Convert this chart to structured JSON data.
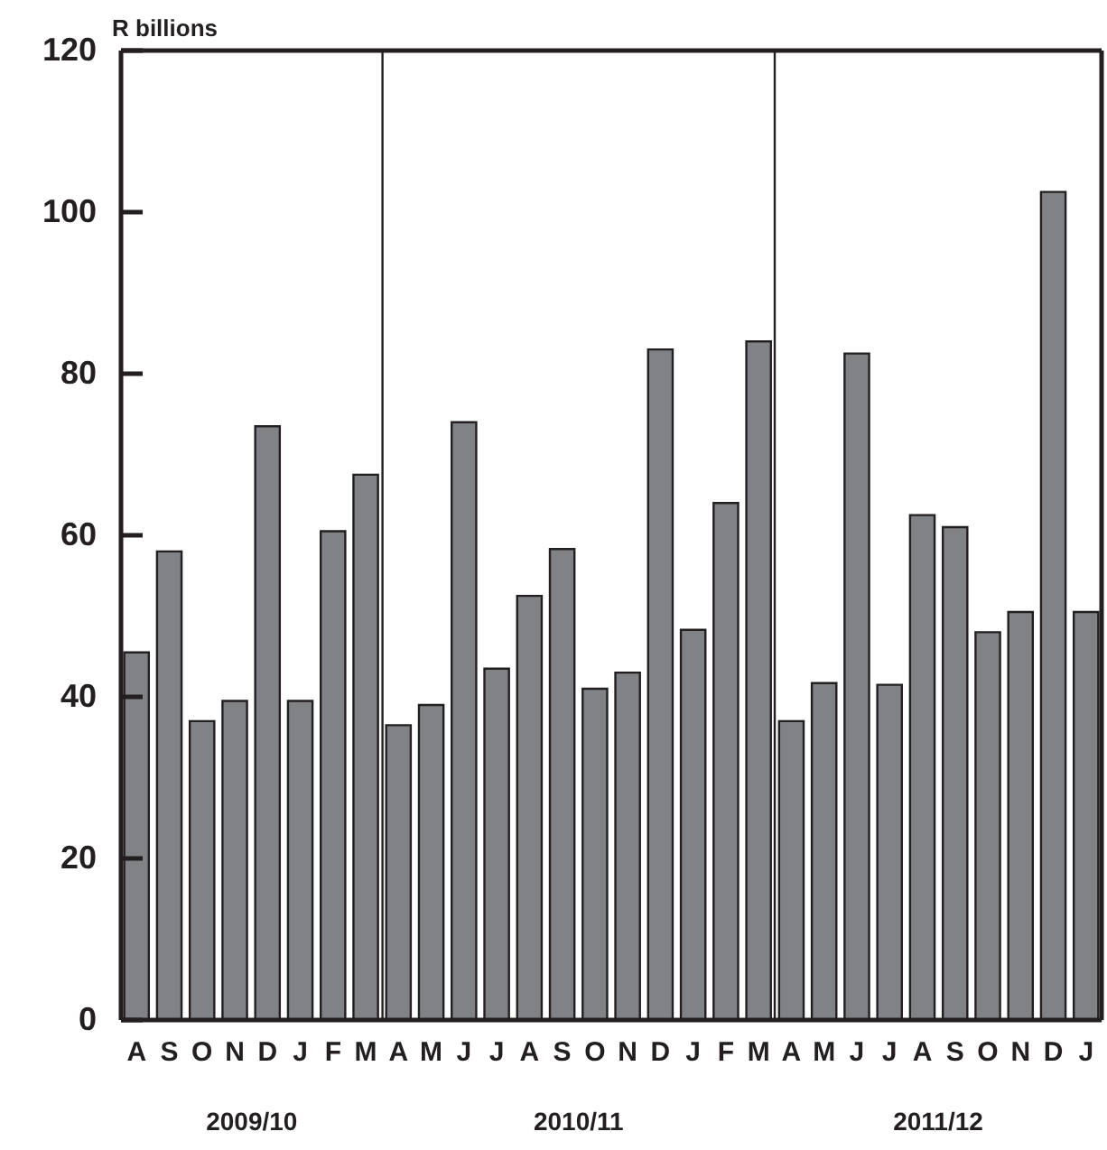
{
  "chart_data": {
    "type": "bar",
    "ylabel": "R billions",
    "categories": [
      "A",
      "S",
      "O",
      "N",
      "D",
      "J",
      "F",
      "M",
      "A",
      "M",
      "J",
      "J",
      "A",
      "S",
      "O",
      "N",
      "D",
      "J",
      "F",
      "M",
      "A",
      "M",
      "J",
      "J",
      "A",
      "S",
      "O",
      "N",
      "D",
      "J"
    ],
    "values": [
      45.5,
      58,
      37,
      39.5,
      73.5,
      39.5,
      60.5,
      67.5,
      36.5,
      39,
      74,
      43.5,
      52.5,
      58.3,
      41,
      43,
      83,
      48.3,
      64,
      84,
      37,
      41.7,
      82.5,
      41.5,
      62.5,
      61,
      48,
      50.5,
      102.5,
      50.5
    ],
    "color": "#808285",
    "ylim": [
      0,
      120
    ],
    "yticks": [
      0,
      20,
      40,
      60,
      80,
      100,
      120
    ],
    "annotations": [
      "2009/10",
      "2010/11",
      "2011/12"
    ],
    "grid": false
  }
}
